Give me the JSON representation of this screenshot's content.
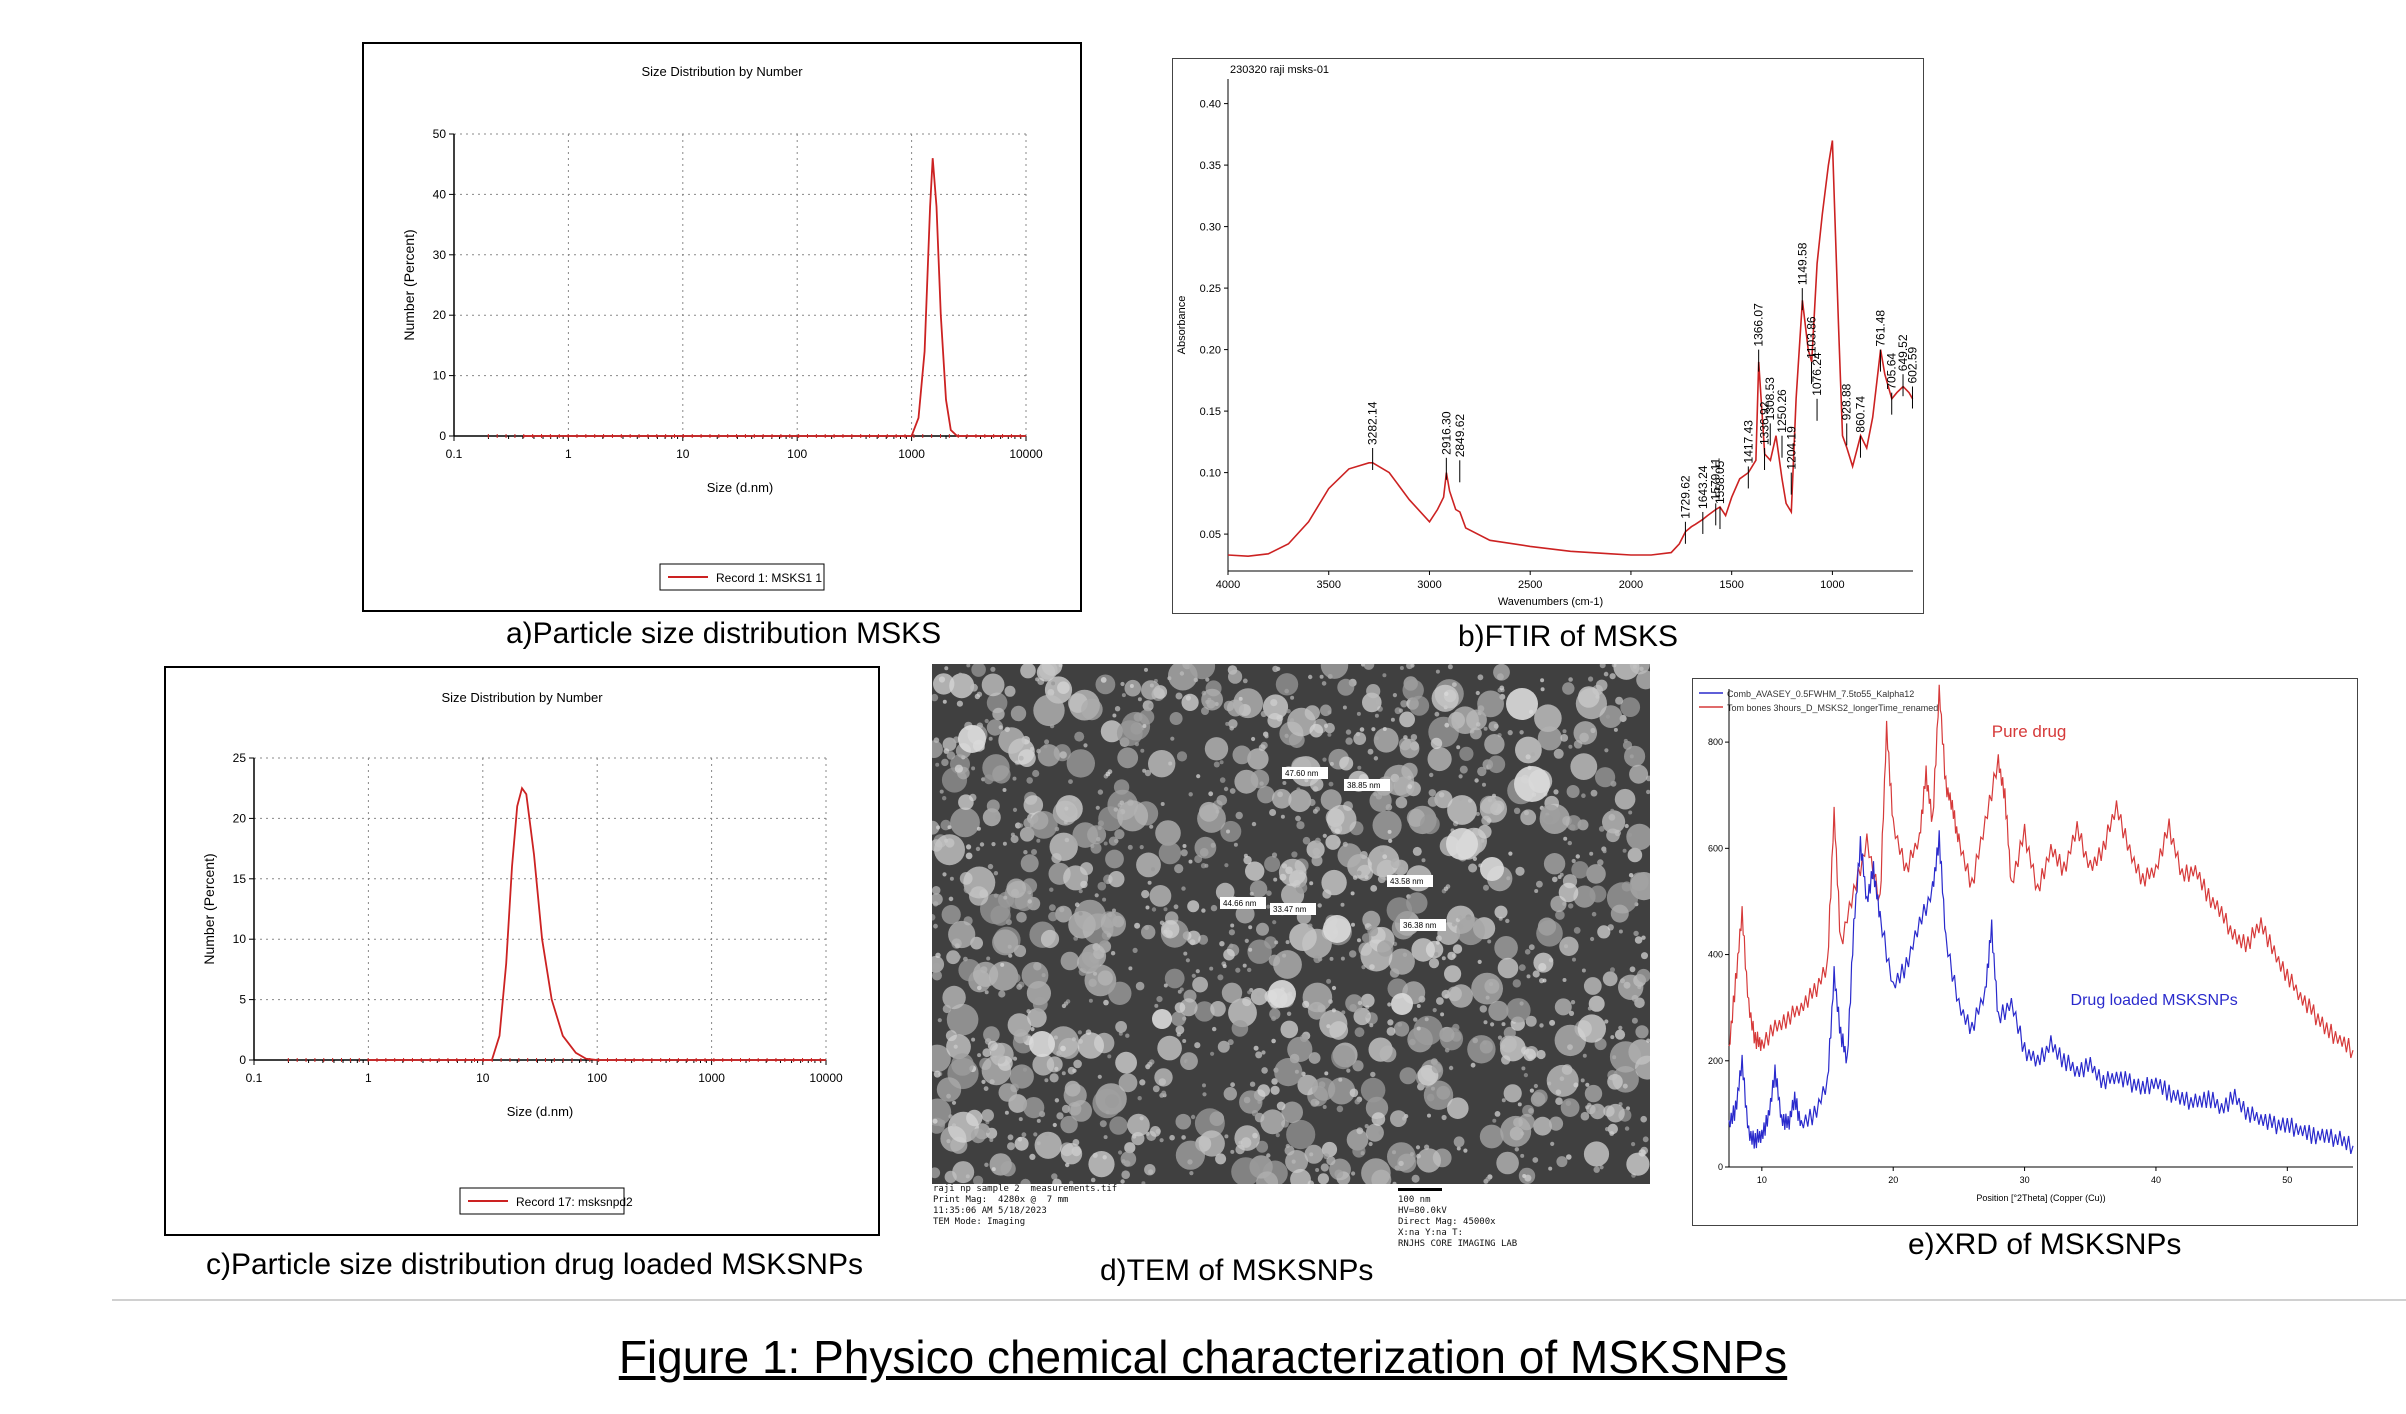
{
  "figure_title": "Figure 1: Physico chemical characterization of MSKSNPs",
  "captions": {
    "a": "a)Particle size distribution MSKS",
    "b": "b)FTIR of MSKS",
    "c": "c)Particle size distribution drug loaded MSKSNPs",
    "d": "d)TEM of MSKSNPs",
    "e": "e)XRD of MSKSNPs"
  },
  "chart_data": [
    {
      "id": "a",
      "type": "line",
      "title": "Size Distribution by Number",
      "xlabel": "Size (d.nm)",
      "ylabel": "Number (Percent)",
      "xscale": "log",
      "xlim": [
        0.1,
        10000
      ],
      "ylim": [
        0,
        50
      ],
      "xticks": [
        "0.1",
        "1",
        "10",
        "100",
        "1000",
        "10000"
      ],
      "yticks": [
        "0",
        "10",
        "20",
        "30",
        "40",
        "50"
      ],
      "grid": true,
      "legend": "bottom-center",
      "color": "#cc2222",
      "series": [
        {
          "name": "Record 1: MSKS1 1",
          "x": [
            0.4,
            1000,
            1150,
            1300,
            1450,
            1530,
            1650,
            1800,
            2000,
            2200,
            2500,
            10000
          ],
          "values": [
            0,
            0,
            3,
            14,
            38,
            46,
            38,
            20,
            6,
            1,
            0,
            0
          ]
        }
      ]
    },
    {
      "id": "b",
      "type": "line",
      "header": "230320 raji msks-01",
      "xlabel": "Wavenumbers (cm-1)",
      "ylabel": "Absorbance",
      "xlim": [
        4000,
        600
      ],
      "ylim": [
        0.02,
        0.42
      ],
      "xticks": [
        "4000",
        "3500",
        "3000",
        "2500",
        "2000",
        "1500",
        "1000"
      ],
      "yticks": [
        "0.05",
        "0.10",
        "0.15",
        "0.20",
        "0.25",
        "0.30",
        "0.35",
        "0.40"
      ],
      "color": "#cc2222",
      "series": [
        {
          "name": "",
          "x": [
            4000,
            3900,
            3800,
            3700,
            3600,
            3500,
            3400,
            3300,
            3282,
            3200,
            3100,
            3000,
            2960,
            2930,
            2916,
            2900,
            2870,
            2849,
            2820,
            2700,
            2500,
            2300,
            2100,
            2000,
            1900,
            1800,
            1760,
            1729,
            1700,
            1680,
            1643,
            1620,
            1579,
            1558,
            1530,
            1500,
            1460,
            1417,
            1380,
            1366,
            1336,
            1308,
            1280,
            1250,
            1230,
            1204,
            1180,
            1149,
            1120,
            1103,
            1076,
            1050,
            1020,
            1000,
            990,
            970,
            950,
            928,
            900,
            860,
            830,
            800,
            761,
            740,
            705,
            680,
            649,
            620,
            602
          ],
          "values": [
            0.033,
            0.032,
            0.034,
            0.042,
            0.06,
            0.087,
            0.103,
            0.108,
            0.108,
            0.1,
            0.078,
            0.06,
            0.07,
            0.08,
            0.1,
            0.085,
            0.07,
            0.068,
            0.055,
            0.045,
            0.04,
            0.036,
            0.034,
            0.033,
            0.033,
            0.035,
            0.042,
            0.052,
            0.056,
            0.058,
            0.062,
            0.065,
            0.07,
            0.072,
            0.065,
            0.08,
            0.095,
            0.1,
            0.11,
            0.19,
            0.115,
            0.11,
            0.13,
            0.095,
            0.075,
            0.068,
            0.16,
            0.24,
            0.2,
            0.19,
            0.27,
            0.31,
            0.35,
            0.37,
            0.32,
            0.22,
            0.13,
            0.12,
            0.105,
            0.13,
            0.12,
            0.145,
            0.2,
            0.18,
            0.16,
            0.165,
            0.17,
            0.165,
            0.16
          ]
        }
      ],
      "peak_labels": [
        "3282.14",
        "2916.30",
        "2849.62",
        "1729.62",
        "1643.24",
        "1579.11",
        "1558.05",
        "1417.43",
        "1336.92",
        "1366.07",
        "1308.53",
        "1250.26",
        "1204.19",
        "1149.58",
        "1103.86",
        "1076.24",
        "928.88",
        "860.74",
        "761.48",
        "705.64",
        "649.52",
        "602.59"
      ]
    },
    {
      "id": "c",
      "type": "line",
      "title": "Size Distribution by Number",
      "xlabel": "Size (d.nm)",
      "ylabel": "Number (Percent)",
      "xscale": "log",
      "xlim": [
        0.1,
        10000
      ],
      "ylim": [
        0,
        25
      ],
      "xticks": [
        "0.1",
        "1",
        "10",
        "100",
        "1000",
        "10000"
      ],
      "yticks": [
        "0",
        "5",
        "10",
        "15",
        "20",
        "25"
      ],
      "grid": true,
      "legend": "bottom-center",
      "color": "#cc2222",
      "series": [
        {
          "name": "Record 17: msksnpd2",
          "x": [
            1,
            12,
            14,
            16,
            18,
            20,
            22,
            24,
            28,
            33,
            40,
            50,
            65,
            80,
            100,
            10000
          ],
          "values": [
            0,
            0,
            2,
            8,
            16,
            21,
            22.5,
            22,
            17,
            10,
            5,
            2,
            0.6,
            0.1,
            0,
            0
          ]
        }
      ]
    },
    {
      "id": "e",
      "type": "line",
      "legend_entries": [
        "Comb_AVASEY_0.5FWHM_7.5to55_Kalpha12",
        "Tom bones 3hours_D_MSKS2_longerTime_renamed"
      ],
      "annotations": [
        "Pure drug",
        "Drug loaded MSKSNPs"
      ],
      "xlabel": "Position [°2Theta] (Copper (Cu))",
      "xlim": [
        7.5,
        55
      ],
      "ylim": [
        0,
        900
      ],
      "xticks": [
        "10",
        "20",
        "30",
        "40",
        "50"
      ],
      "yticks": [
        "0",
        "200",
        "400",
        "600",
        "800"
      ],
      "series": [
        {
          "name": "Pure drug",
          "color": "#d63a3a",
          "x": [
            7.5,
            8,
            8.5,
            9,
            9.5,
            10,
            11,
            12,
            13,
            14,
            15,
            15.5,
            16,
            17,
            18,
            19,
            19.5,
            20,
            21,
            22,
            22.5,
            23,
            23.5,
            24,
            24.5,
            25,
            26,
            27,
            28,
            28.5,
            29,
            30,
            31,
            32,
            33,
            34,
            35,
            36,
            37,
            38,
            39,
            40,
            41,
            42,
            43,
            44,
            45,
            46,
            47,
            48,
            49,
            50,
            51,
            52,
            53,
            54,
            55
          ],
          "values": [
            220,
            350,
            480,
            300,
            240,
            230,
            260,
            280,
            300,
            330,
            380,
            670,
            420,
            520,
            610,
            500,
            830,
            640,
            560,
            620,
            740,
            650,
            900,
            720,
            680,
            610,
            530,
            650,
            760,
            700,
            530,
            630,
            520,
            600,
            560,
            640,
            560,
            600,
            680,
            590,
            540,
            560,
            640,
            550,
            560,
            510,
            480,
            430,
            420,
            460,
            400,
            360,
            320,
            290,
            260,
            240,
            220
          ]
        },
        {
          "name": "Drug loaded MSKSNPs",
          "color": "#2a2acc",
          "x": [
            7.5,
            8,
            8.5,
            9,
            9.5,
            10,
            10.5,
            11,
            11.5,
            12,
            12.5,
            13,
            14,
            15,
            15.5,
            16,
            16.5,
            17,
            17.5,
            18,
            18.5,
            19,
            20,
            21,
            22,
            23,
            23.5,
            24,
            25,
            26,
            27,
            27.5,
            28,
            29,
            30,
            31,
            32,
            33,
            34,
            35,
            36,
            37,
            38,
            39,
            40,
            41,
            42,
            43,
            44,
            45,
            46,
            47,
            48,
            49,
            50,
            51,
            52,
            53,
            54,
            55
          ],
          "values": [
            80,
            110,
            200,
            60,
            50,
            60,
            90,
            180,
            90,
            80,
            130,
            80,
            100,
            160,
            360,
            250,
            200,
            450,
            610,
            500,
            560,
            470,
            340,
            380,
            460,
            520,
            620,
            430,
            300,
            260,
            330,
            450,
            280,
            310,
            220,
            200,
            230,
            200,
            180,
            190,
            160,
            170,
            160,
            150,
            160,
            140,
            130,
            120,
            130,
            110,
            130,
            100,
            90,
            80,
            80,
            70,
            60,
            60,
            50,
            40
          ]
        }
      ]
    }
  ],
  "tem": {
    "labels": [
      "47.60 nm",
      "38.85 nm",
      "44.66 nm",
      "33.47 nm",
      "43.58 nm",
      "36.38 nm"
    ],
    "meta_left": "raji np sample 2  measurements.tif\nPrint Mag:  4280x @  7 mm\n11:35:06 AM 5/18/2023\nTEM Mode: Imaging",
    "scale_bar": "100 nm",
    "meta_right": "HV=80.0kV\nDirect Mag: 45000x\nX:na Y:na T:\nRNJHS CORE IMAGING LAB"
  }
}
